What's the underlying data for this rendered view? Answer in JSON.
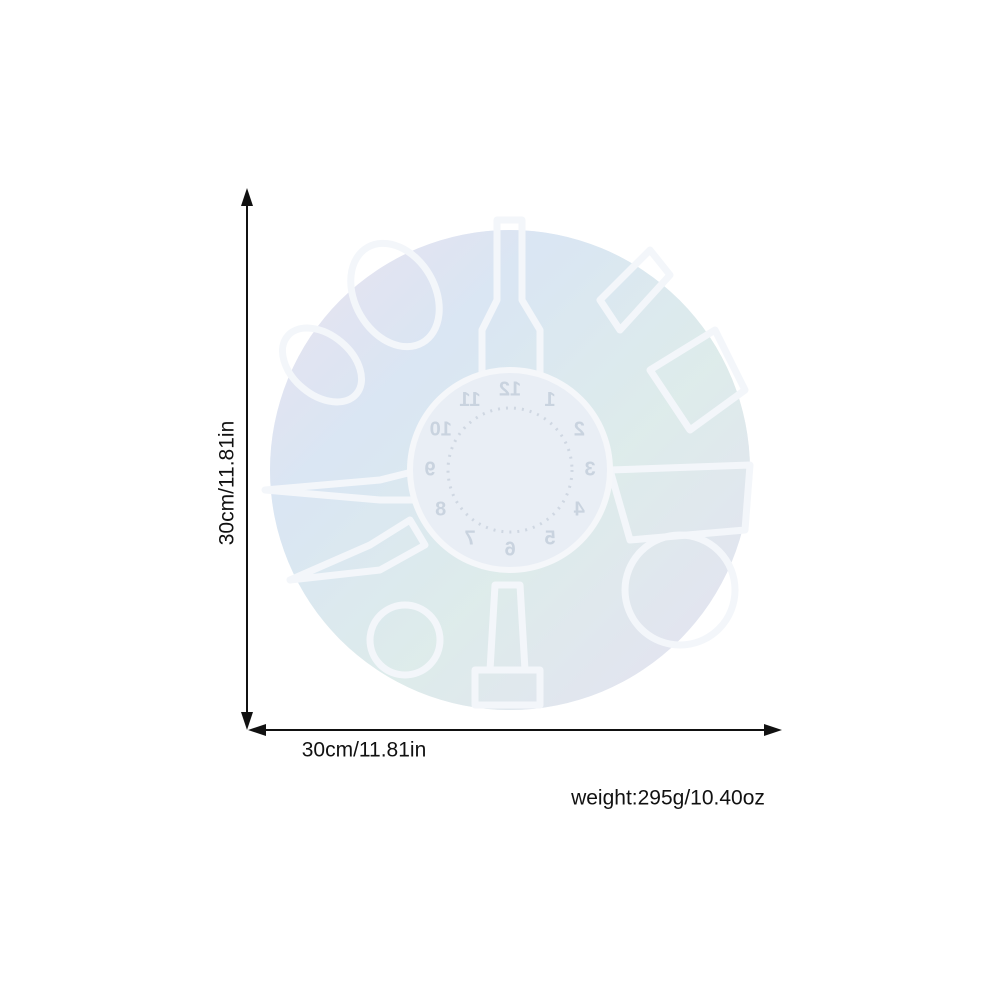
{
  "dimensions": {
    "height_label": "30cm/11.81in",
    "width_label": "30cm/11.81in",
    "weight_label": "weight:295g/10.40oz"
  },
  "mold": {
    "dial_numbers": [
      "12",
      "11",
      "10",
      "9",
      "8",
      "7",
      "6",
      "5",
      "4",
      "3",
      "2",
      "1"
    ]
  }
}
